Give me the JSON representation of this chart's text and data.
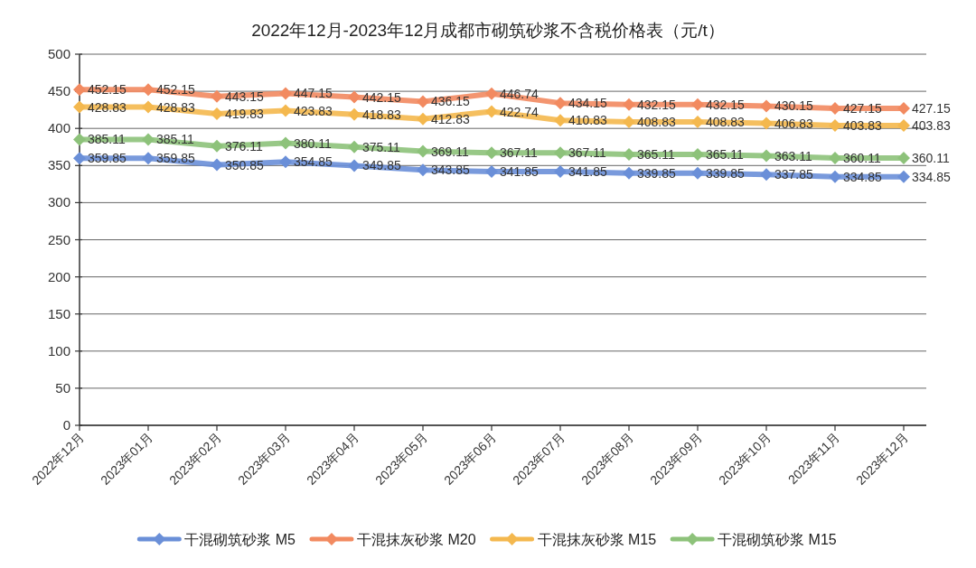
{
  "chart_data": {
    "type": "line",
    "title": "2022年12月-2023年12月成都市砌筑砂浆不含税价格表（元/t）",
    "categories": [
      "2022年12月",
      "2023年01月",
      "2023年02月",
      "2023年03月",
      "2023年04月",
      "2023年05月",
      "2023年06月",
      "2023年07月",
      "2023年08月",
      "2023年09月",
      "2023年10月",
      "2023年11月",
      "2023年12月"
    ],
    "series": [
      {
        "name": "干混砌筑砂浆 M5",
        "color": "#6a8fd8",
        "values": [
          359.85,
          359.85,
          350.85,
          354.85,
          349.85,
          343.85,
          341.85,
          341.85,
          339.85,
          339.85,
          337.85,
          334.85,
          334.85
        ]
      },
      {
        "name": "干混抹灰砂浆 M20",
        "color": "#f28a60",
        "values": [
          452.15,
          452.15,
          443.15,
          447.15,
          442.15,
          436.15,
          446.74,
          434.15,
          432.15,
          432.15,
          430.15,
          427.15,
          427.15
        ]
      },
      {
        "name": "干混抹灰砂浆 M15",
        "color": "#f4b84e",
        "values": [
          428.83,
          428.83,
          419.83,
          423.83,
          418.83,
          412.83,
          422.74,
          410.83,
          408.83,
          408.83,
          406.83,
          403.83,
          403.83
        ]
      },
      {
        "name": "干混砌筑砂浆 M15",
        "color": "#8dc27a",
        "values": [
          385.11,
          385.11,
          376.11,
          380.11,
          375.11,
          369.11,
          367.11,
          367.11,
          365.11,
          365.11,
          363.11,
          360.11,
          360.11
        ]
      }
    ],
    "ylim": [
      0,
      500
    ],
    "yticks": [
      0,
      50,
      100,
      150,
      200,
      250,
      300,
      350,
      400,
      450,
      500
    ],
    "grid": "y",
    "legend": "bottom",
    "marker": "diamond",
    "line_style": "solid",
    "data_labels": true
  }
}
